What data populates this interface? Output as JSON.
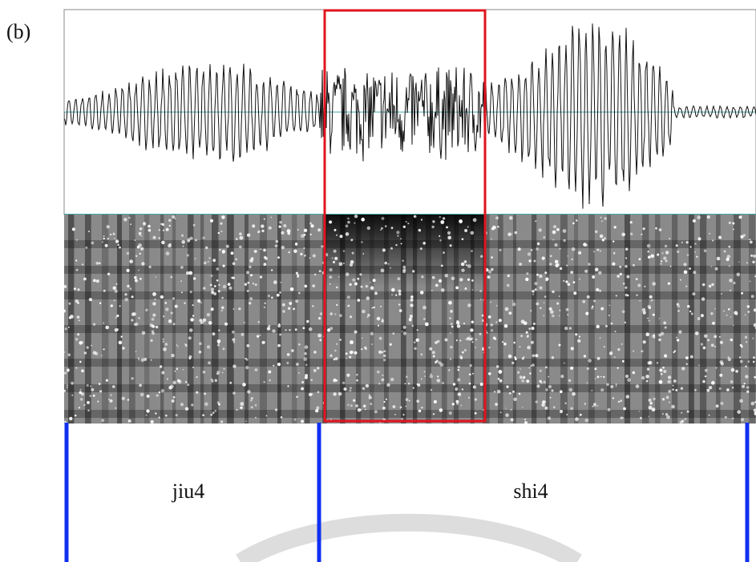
{
  "panel_label": "(b)",
  "segments": [
    {
      "label": "jiu4"
    },
    {
      "label": "shi4"
    }
  ]
}
